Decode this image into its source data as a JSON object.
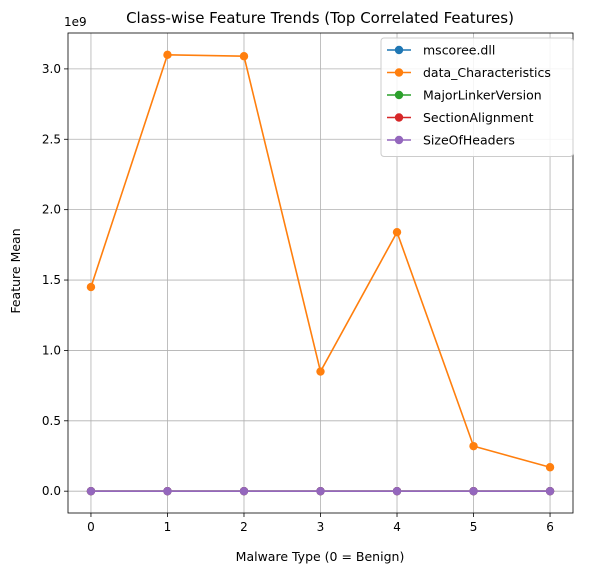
{
  "chart_data": {
    "type": "line",
    "title": "Class-wise Feature Trends (Top Correlated Features)",
    "xlabel": "Malware Type (0 = Benign)",
    "ylabel": "Feature Mean",
    "y_offset_label": "1e9",
    "x": [
      0,
      1,
      2,
      3,
      4,
      5,
      6
    ],
    "x_ticks": [
      "0",
      "1",
      "2",
      "3",
      "4",
      "5",
      "6"
    ],
    "y_ticks": [
      "0.0",
      "0.5",
      "1.0",
      "1.5",
      "2.0",
      "2.5",
      "3.0"
    ],
    "y_tick_values": [
      0.0,
      0.5,
      1.0,
      1.5,
      2.0,
      2.5,
      3.0
    ],
    "xlim": [
      -0.3,
      6.3
    ],
    "ylim": [
      -0.155,
      3.255
    ],
    "grid": true,
    "legend_position": "top-right",
    "series": [
      {
        "name": "mscoree.dll",
        "color": "#1f77b4",
        "values": [
          0,
          0,
          0,
          0,
          0,
          0,
          0
        ]
      },
      {
        "name": "data_Characteristics",
        "color": "#ff7f0e",
        "values": [
          1.45,
          3.1,
          3.09,
          0.85,
          1.84,
          0.32,
          0.17
        ]
      },
      {
        "name": "MajorLinkerVersion",
        "color": "#2ca02c",
        "values": [
          0,
          0,
          0,
          0,
          0,
          0,
          0
        ]
      },
      {
        "name": "SectionAlignment",
        "color": "#d62728",
        "values": [
          0,
          0,
          0,
          0,
          0,
          0,
          0
        ]
      },
      {
        "name": "SizeOfHeaders",
        "color": "#9467bd",
        "values": [
          0,
          0,
          0,
          0,
          0,
          0,
          0
        ]
      }
    ]
  }
}
